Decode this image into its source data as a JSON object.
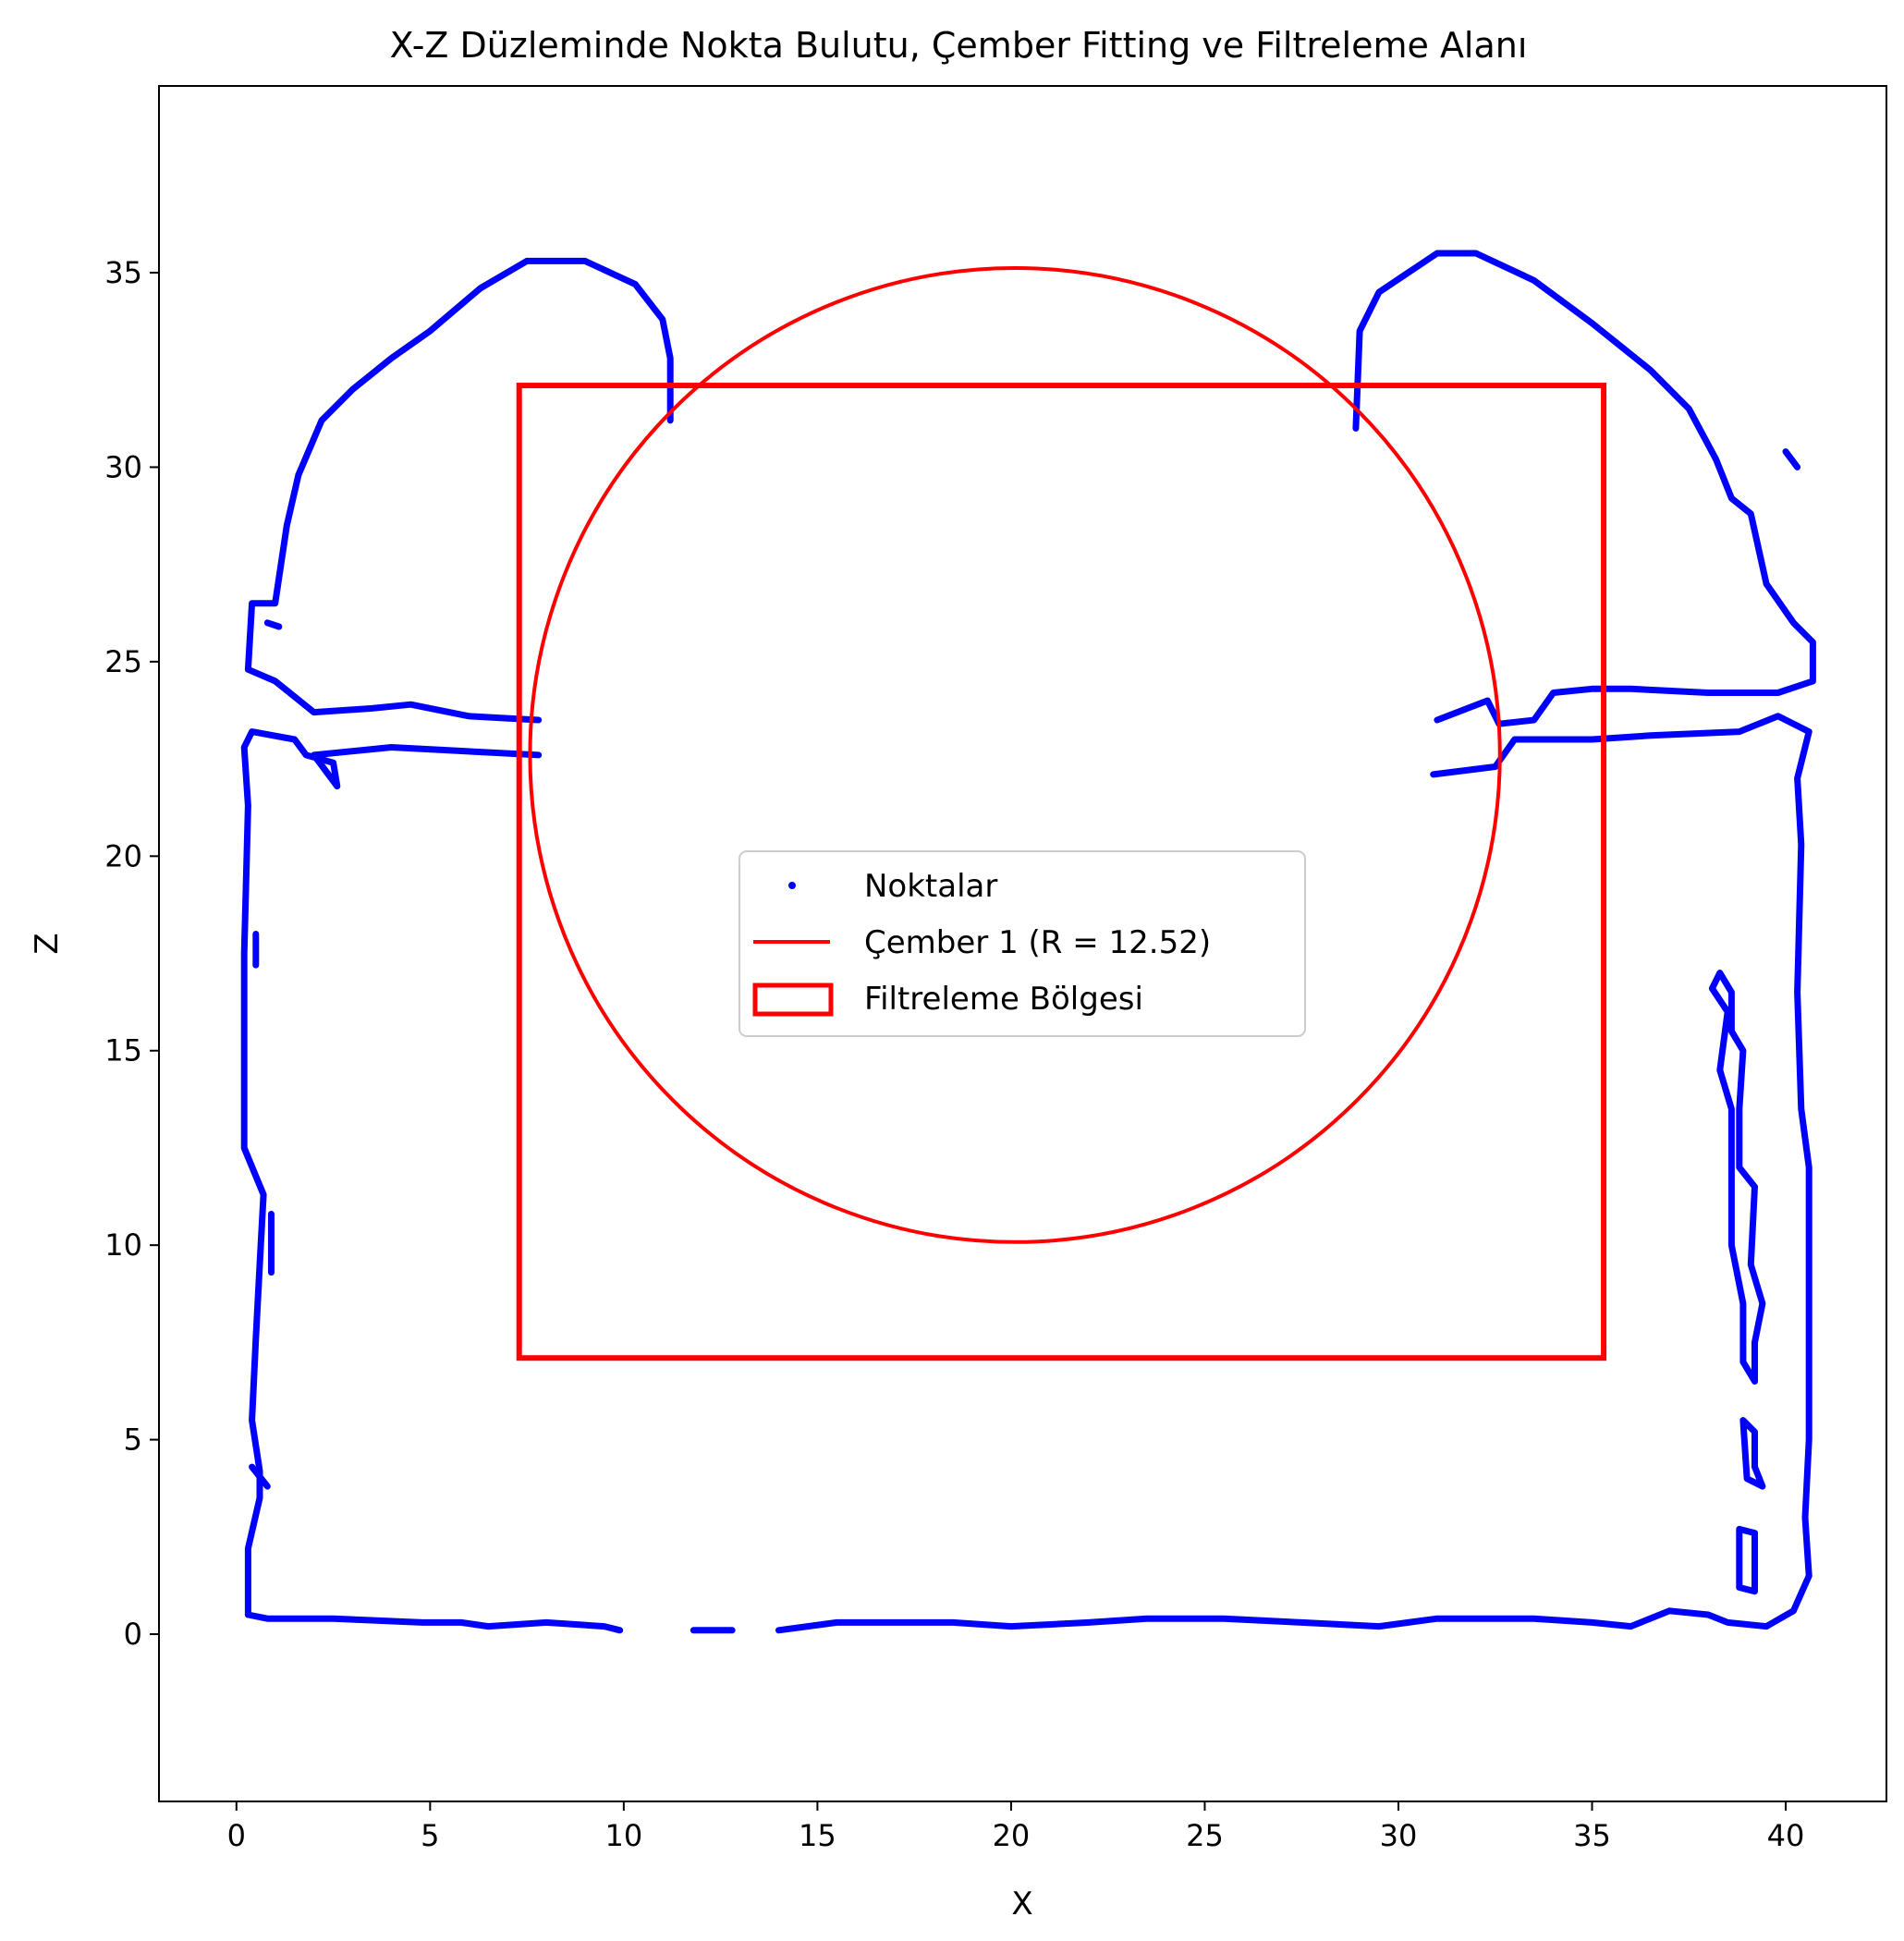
{
  "chart_data": {
    "type": "scatter",
    "title": "X-Z Düzleminde Nokta Bulutu, Çember Fitting ve Filtreleme Alanı",
    "xlabel": "X",
    "ylabel": "Z",
    "xlim": [
      -2.0,
      42.6
    ],
    "ylim": [
      -4.3,
      39.8
    ],
    "xticks": [
      0,
      5,
      10,
      15,
      20,
      25,
      30,
      35,
      40
    ],
    "yticks": [
      0,
      5,
      10,
      15,
      20,
      25,
      30,
      35
    ],
    "grid": false,
    "legend_position": "center",
    "colors": {
      "points": "#0000ff",
      "circle": "#ff0000",
      "rect": "#ff0000"
    },
    "series": [
      {
        "name": "Noktalar",
        "kind": "points",
        "polylines": [
          [
            [
              0.3,
              0.5
            ],
            [
              0.3,
              2.2
            ],
            [
              0.6,
              3.5
            ],
            [
              0.6,
              4.2
            ],
            [
              0.4,
              5.5
            ],
            [
              0.5,
              7.6
            ],
            [
              0.6,
              9.5
            ],
            [
              0.7,
              11.3
            ],
            [
              0.2,
              12.5
            ],
            [
              0.2,
              14.8
            ],
            [
              0.2,
              17.5
            ],
            [
              0.3,
              21.3
            ],
            [
              0.2,
              22.8
            ],
            [
              0.4,
              23.2
            ],
            [
              1.5,
              23.0
            ],
            [
              1.8,
              22.6
            ],
            [
              2.5,
              22.4
            ],
            [
              2.6,
              21.8
            ],
            [
              2.0,
              22.6
            ],
            [
              4.0,
              22.8
            ],
            [
              7.8,
              22.6
            ]
          ],
          [
            [
              0.3,
              0.5
            ],
            [
              0.8,
              0.4
            ],
            [
              2.5,
              0.4
            ],
            [
              4.8,
              0.3
            ],
            [
              5.8,
              0.3
            ],
            [
              6.5,
              0.2
            ],
            [
              8.0,
              0.3
            ],
            [
              9.5,
              0.2
            ],
            [
              9.9,
              0.1
            ]
          ],
          [
            [
              11.8,
              0.1
            ],
            [
              12.8,
              0.1
            ]
          ],
          [
            [
              14.0,
              0.1
            ],
            [
              15.5,
              0.3
            ],
            [
              17.0,
              0.3
            ],
            [
              18.5,
              0.3
            ],
            [
              20.0,
              0.2
            ],
            [
              22.0,
              0.3
            ],
            [
              23.5,
              0.4
            ],
            [
              25.5,
              0.4
            ],
            [
              27.5,
              0.3
            ],
            [
              29.5,
              0.2
            ],
            [
              31.0,
              0.4
            ],
            [
              33.5,
              0.4
            ],
            [
              35.0,
              0.3
            ],
            [
              36.0,
              0.2
            ],
            [
              37.0,
              0.6
            ],
            [
              38.0,
              0.5
            ],
            [
              38.5,
              0.3
            ],
            [
              39.5,
              0.2
            ],
            [
              40.2,
              0.6
            ],
            [
              40.6,
              1.5
            ],
            [
              40.5,
              3.0
            ],
            [
              40.6,
              5.0
            ],
            [
              40.6,
              7.5
            ],
            [
              40.6,
              12.0
            ],
            [
              40.4,
              13.5
            ],
            [
              40.3,
              16.5
            ],
            [
              40.4,
              20.3
            ],
            [
              40.3,
              22.0
            ],
            [
              40.6,
              23.2
            ],
            [
              39.8,
              23.6
            ],
            [
              38.8,
              23.2
            ],
            [
              36.5,
              23.1
            ],
            [
              35.0,
              23.0
            ],
            [
              33.0,
              23.0
            ],
            [
              32.5,
              22.3
            ],
            [
              30.9,
              22.1
            ]
          ],
          [
            [
              7.8,
              23.5
            ],
            [
              6.0,
              23.6
            ],
            [
              4.5,
              23.9
            ],
            [
              3.5,
              23.8
            ],
            [
              2.0,
              23.7
            ],
            [
              1.0,
              24.5
            ],
            [
              0.3,
              24.8
            ],
            [
              0.4,
              26.5
            ],
            [
              1.0,
              26.5
            ],
            [
              1.3,
              28.5
            ],
            [
              1.6,
              29.8
            ],
            [
              2.2,
              31.2
            ],
            [
              3.0,
              32.0
            ],
            [
              4.0,
              32.8
            ],
            [
              5.0,
              33.5
            ],
            [
              6.3,
              34.6
            ],
            [
              7.5,
              35.3
            ],
            [
              9.0,
              35.3
            ],
            [
              10.3,
              34.7
            ],
            [
              11.0,
              33.8
            ],
            [
              11.2,
              32.8
            ],
            [
              11.2,
              31.2
            ]
          ],
          [
            [
              28.9,
              31.0
            ],
            [
              29.0,
              33.5
            ],
            [
              29.5,
              34.5
            ],
            [
              31.0,
              35.5
            ],
            [
              32.0,
              35.5
            ],
            [
              33.5,
              34.8
            ],
            [
              35.0,
              33.7
            ],
            [
              36.5,
              32.5
            ],
            [
              37.5,
              31.5
            ],
            [
              38.2,
              30.2
            ],
            [
              38.6,
              29.2
            ],
            [
              39.1,
              28.8
            ],
            [
              39.5,
              27.0
            ],
            [
              40.2,
              26.0
            ],
            [
              40.7,
              25.5
            ],
            [
              40.7,
              24.5
            ],
            [
              39.8,
              24.2
            ],
            [
              38.0,
              24.2
            ],
            [
              36.0,
              24.3
            ],
            [
              35.0,
              24.3
            ],
            [
              34.0,
              24.2
            ],
            [
              33.5,
              23.5
            ],
            [
              32.6,
              23.4
            ],
            [
              32.3,
              24.0
            ],
            [
              31.0,
              23.5
            ]
          ],
          [
            [
              38.3,
              17.0
            ],
            [
              38.6,
              16.5
            ],
            [
              38.6,
              15.5
            ],
            [
              38.9,
              15.0
            ],
            [
              38.8,
              13.5
            ],
            [
              38.8,
              12.0
            ],
            [
              39.2,
              11.5
            ],
            [
              39.1,
              9.5
            ],
            [
              39.4,
              8.5
            ],
            [
              39.2,
              7.5
            ],
            [
              39.2,
              6.5
            ],
            [
              38.9,
              7.0
            ],
            [
              38.9,
              8.5
            ],
            [
              38.6,
              10.0
            ],
            [
              38.6,
              13.5
            ],
            [
              38.3,
              14.5
            ],
            [
              38.5,
              16.0
            ],
            [
              38.1,
              16.6
            ],
            [
              38.3,
              17.0
            ]
          ],
          [
            [
              38.9,
              5.5
            ],
            [
              39.2,
              5.2
            ],
            [
              39.2,
              4.3
            ],
            [
              39.4,
              3.8
            ],
            [
              39.0,
              4.0
            ],
            [
              38.9,
              5.5
            ]
          ],
          [
            [
              38.8,
              2.7
            ],
            [
              39.2,
              2.6
            ],
            [
              39.2,
              1.1
            ],
            [
              38.8,
              1.2
            ],
            [
              38.8,
              2.7
            ]
          ],
          [
            [
              40.0,
              30.4
            ],
            [
              40.3,
              30.0
            ]
          ],
          [
            [
              0.8,
              26.0
            ],
            [
              1.1,
              25.9
            ]
          ],
          [
            [
              0.9,
              10.8
            ],
            [
              0.9,
              9.3
            ]
          ],
          [
            [
              0.5,
              18.0
            ],
            [
              0.5,
              17.2
            ]
          ],
          [
            [
              0.4,
              4.3
            ],
            [
              0.8,
              3.8
            ]
          ]
        ]
      },
      {
        "name": "Çember 1 (R = 12.52)",
        "kind": "circle",
        "center": [
          20.1,
          22.6
        ],
        "radius": 12.52
      },
      {
        "name": "Filtreleme Bölgesi",
        "kind": "rect",
        "x": [
          7.3,
          35.3
        ],
        "y": [
          7.1,
          32.1
        ]
      }
    ]
  }
}
